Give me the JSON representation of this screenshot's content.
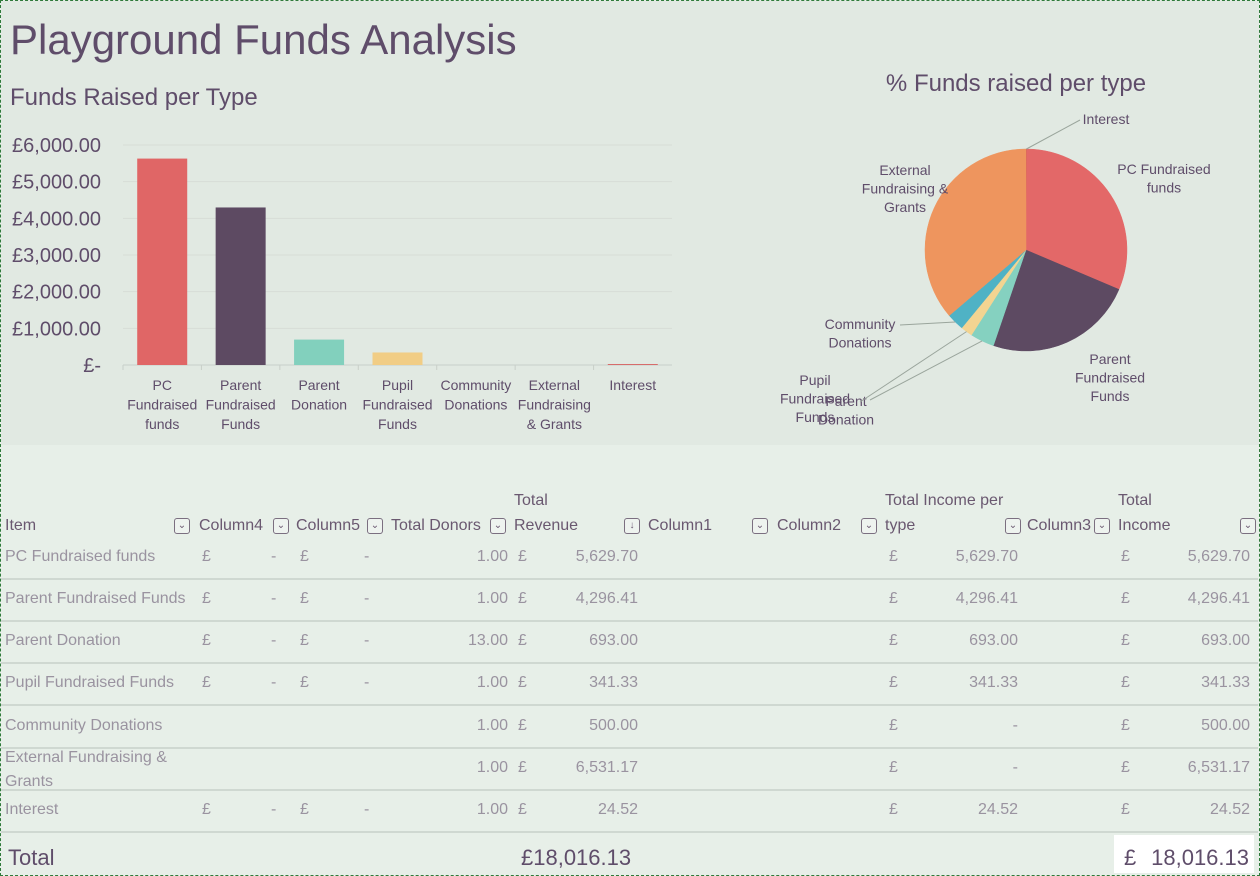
{
  "title": "Playground Funds Analysis",
  "chart_data": [
    {
      "type": "bar",
      "title": "Funds Raised per Type",
      "categories": [
        "PC Fundraised funds",
        "Parent Fundraised Funds",
        "Parent Donation",
        "Pupil Fundraised Funds",
        "Community Donations",
        "External Fundraising & Grants",
        "Interest"
      ],
      "category_lines": [
        [
          "PC",
          "Fundraised",
          "funds"
        ],
        [
          "Parent",
          "Fundraised",
          "Funds"
        ],
        [
          "Parent",
          "Donation"
        ],
        [
          "Pupil",
          "Fundraised",
          "Funds"
        ],
        [
          "Community",
          "Donations"
        ],
        [
          "External",
          "Fundraising",
          "& Grants"
        ],
        [
          "Interest"
        ]
      ],
      "values": [
        5629.7,
        4296.41,
        693.0,
        341.33,
        0,
        0,
        24.52
      ],
      "colors": [
        "#e06666",
        "#5d4a62",
        "#82d0bd",
        "#f1cd85",
        "#4fb6c8",
        "#ef965d",
        "#d65e5e"
      ],
      "ylim": [
        0,
        6000
      ],
      "yticks": [
        "£-",
        "£1,000.00",
        "£2,000.00",
        "£3,000.00",
        "£4,000.00",
        "£5,000.00",
        "£6,000.00"
      ],
      "grid": true
    },
    {
      "type": "pie",
      "title": "% Funds raised per type",
      "slice_order": [
        "Interest",
        "PC Fundraised funds",
        "Parent Fundraised Funds",
        "Parent Donation",
        "Pupil Fundraised Funds",
        "Community Donations",
        "External Fundraising & Grants"
      ],
      "values": [
        24.52,
        5629.7,
        4296.41,
        693.0,
        341.33,
        500.0,
        6531.17
      ],
      "colors": [
        "#c9474a",
        "#e36868",
        "#5d4a62",
        "#85d1c0",
        "#f3d491",
        "#4fb2c5",
        "#ee955e"
      ],
      "labels": [
        {
          "lines": [
            "Interest"
          ]
        },
        {
          "lines": [
            "PC Fundraised",
            "funds"
          ]
        },
        {
          "lines": [
            "Parent",
            "Fundraised",
            "Funds"
          ]
        },
        {
          "lines": [
            "Parent",
            "Donation"
          ]
        },
        {
          "lines": [
            "Pupil",
            "Fundraised",
            "Funds"
          ]
        },
        {
          "lines": [
            "Community",
            "Donations"
          ]
        },
        {
          "lines": [
            "External",
            "Fundraising &",
            "Grants"
          ]
        }
      ]
    }
  ],
  "table": {
    "headers": {
      "item": "Item",
      "col4": "Column4",
      "col5": "Column5",
      "donors": "Total Donors",
      "revenue_top": "Total",
      "revenue": "Revenue",
      "col1": "Column1",
      "col2": "Column2",
      "income_type_top": "Total Income per",
      "income_type": "type",
      "col3": "Column3",
      "income_top": "Total",
      "income": "Income"
    },
    "currency": "£",
    "dash": "-",
    "rows": [
      {
        "item": "PC Fundraised funds",
        "c4": true,
        "donors": "1.00",
        "revenue": "5,629.70",
        "income_type": "5,629.70",
        "income": "5,629.70"
      },
      {
        "item": "Parent Fundraised Funds",
        "c4": true,
        "donors": "1.00",
        "revenue": "4,296.41",
        "income_type": "4,296.41",
        "income": "4,296.41"
      },
      {
        "item": "Parent Donation",
        "c4": true,
        "donors": "13.00",
        "revenue": "693.00",
        "income_type": "693.00",
        "income": "693.00"
      },
      {
        "item": "Pupil Fundraised Funds",
        "c4": true,
        "donors": "1.00",
        "revenue": "341.33",
        "income_type": "341.33",
        "income": "341.33"
      },
      {
        "item": "Community Donations",
        "c4": false,
        "donors": "1.00",
        "revenue": "500.00",
        "income_type": "-",
        "income": "500.00"
      },
      {
        "item": "External Fundraising & Grants",
        "item_lines": [
          "External Fundraising &",
          "Grants"
        ],
        "c4": false,
        "donors": "1.00",
        "revenue": "6,531.17",
        "income_type": "-",
        "income": "6,531.17"
      },
      {
        "item": "Interest",
        "c4": true,
        "donors": "1.00",
        "revenue": "24.52",
        "income_type": "24.52",
        "income": "24.52"
      }
    ],
    "total": {
      "label": "Total",
      "revenue": "£18,016.13",
      "income_currency": "£",
      "income": "18,016.13"
    }
  }
}
